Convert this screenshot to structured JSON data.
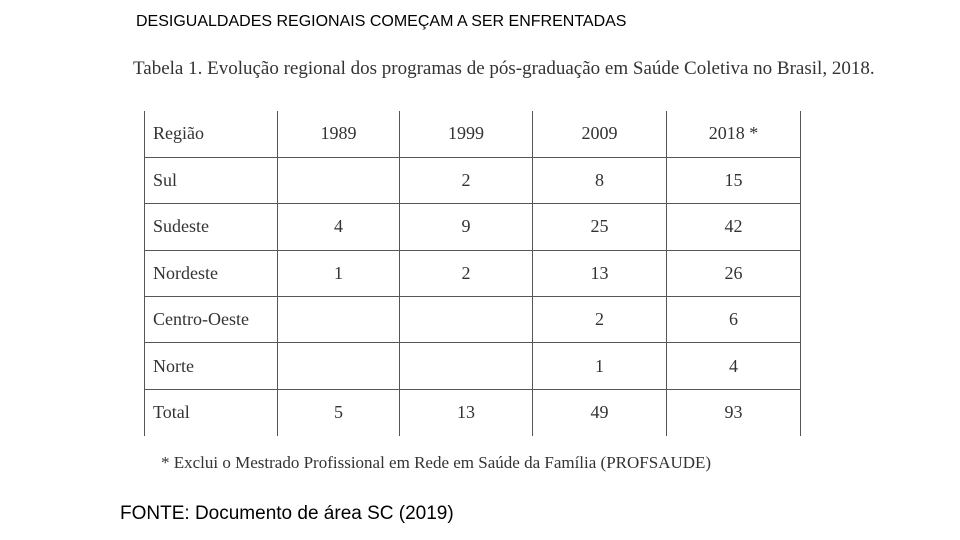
{
  "slide": {
    "title": "DESIGUALDADES REGIONAIS COMEÇAM A SER ENFRENTADAS"
  },
  "table": {
    "caption": "Tabela 1. Evolução regional dos programas de pós-graduação em Saúde Coletiva no Brasil, 2018.",
    "headers": [
      "Região",
      "1989",
      "1999",
      "2009",
      "2018 *"
    ],
    "rows": [
      [
        "Sul",
        "",
        "2",
        "8",
        "15"
      ],
      [
        "Sudeste",
        "4",
        "9",
        "25",
        "42"
      ],
      [
        "Nordeste",
        "1",
        "2",
        "13",
        "26"
      ],
      [
        "Centro-Oeste",
        "",
        "",
        "2",
        "6"
      ],
      [
        "Norte",
        "",
        "",
        "1",
        "4"
      ],
      [
        "Total",
        "5",
        "13",
        "49",
        "93"
      ]
    ],
    "footnote": "* Exclui o Mestrado Profissional em Rede em Saúde da Família (PROFSAUDE)"
  },
  "source": "FONTE: Documento de área SC (2019)"
}
